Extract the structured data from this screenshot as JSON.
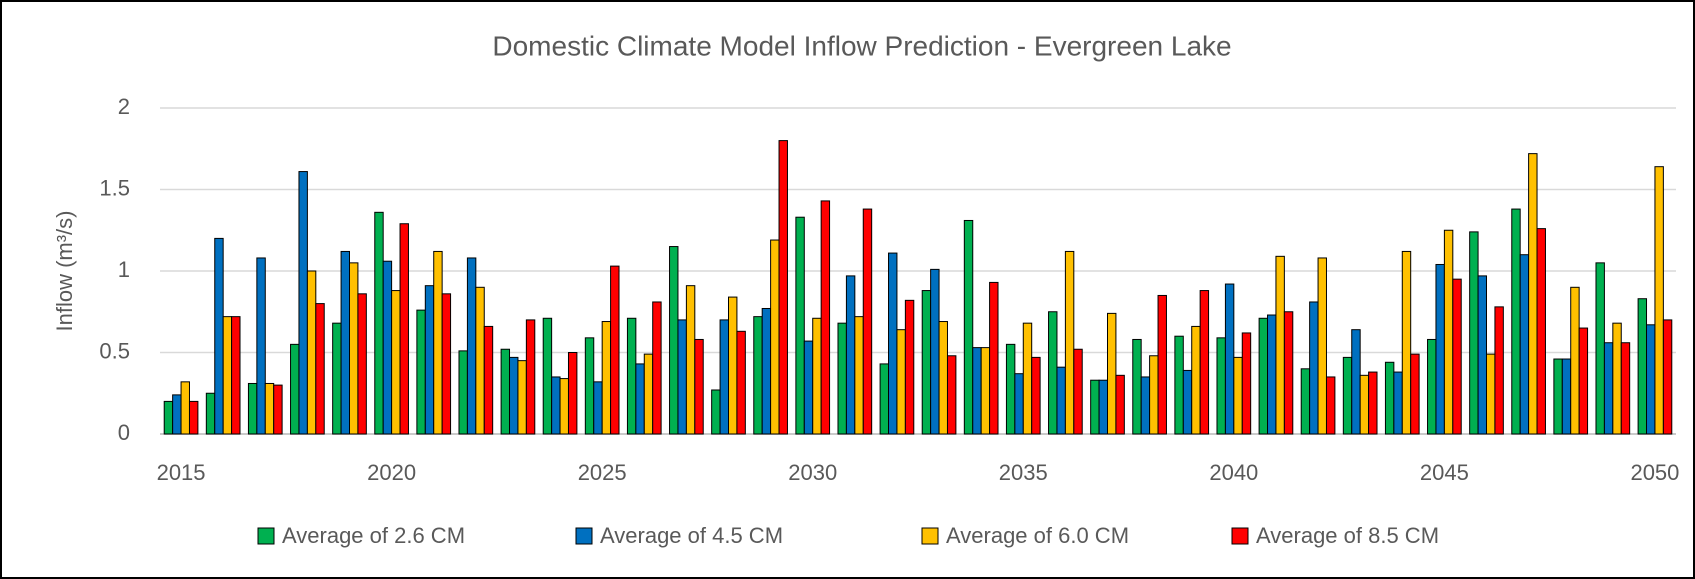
{
  "chart_data": {
    "type": "bar",
    "title": "Domestic Climate Model Inflow Prediction - Evergreen Lake",
    "y_label": "Inflow (m³/s)",
    "categories": [
      "2015",
      null,
      null,
      null,
      null,
      "2020",
      null,
      null,
      null,
      null,
      "2025",
      null,
      null,
      null,
      null,
      "2030",
      null,
      null,
      null,
      null,
      "2035",
      null,
      null,
      null,
      null,
      "2040",
      null,
      null,
      null,
      null,
      "2045",
      null,
      null,
      null,
      null,
      "2050"
    ],
    "series": [
      {
        "name": "Average of 2.6 CM",
        "color": "#00b050",
        "values": [
          0.2,
          0.25,
          0.31,
          0.55,
          0.68,
          1.36,
          0.76,
          0.51,
          0.52,
          0.71,
          0.59,
          0.71,
          1.15,
          0.27,
          0.72,
          1.33,
          0.68,
          0.43,
          0.88,
          1.31,
          0.55,
          0.75,
          0.33,
          0.58,
          0.6,
          0.59,
          0.71,
          0.4,
          0.47,
          0.44,
          0.58,
          1.24,
          1.38,
          0.46,
          1.05,
          0.83
        ]
      },
      {
        "name": "Average of 4.5 CM",
        "color": "#0070c0",
        "values": [
          0.24,
          1.2,
          1.08,
          1.61,
          1.12,
          1.06,
          0.91,
          1.08,
          0.47,
          0.35,
          0.32,
          0.43,
          0.7,
          0.7,
          0.77,
          0.57,
          0.97,
          1.11,
          1.01,
          0.53,
          0.37,
          0.41,
          0.33,
          0.35,
          0.39,
          0.92,
          0.73,
          0.81,
          0.64,
          0.38,
          1.04,
          0.97,
          1.1,
          0.46,
          0.56,
          0.67
        ]
      },
      {
        "name": "Average of 6.0 CM",
        "color": "#ffc000",
        "values": [
          0.32,
          0.72,
          0.31,
          1.0,
          1.05,
          0.88,
          1.12,
          0.9,
          0.45,
          0.34,
          0.69,
          0.49,
          0.91,
          0.84,
          1.19,
          0.71,
          0.72,
          0.64,
          0.69,
          0.53,
          0.68,
          1.12,
          0.74,
          0.48,
          0.66,
          0.47,
          1.09,
          1.08,
          0.36,
          1.12,
          1.25,
          0.49,
          1.72,
          0.9,
          0.68,
          1.64
        ]
      },
      {
        "name": "Average of 8.5 CM",
        "color": "#ff0000",
        "values": [
          0.2,
          0.72,
          0.3,
          0.8,
          0.86,
          1.29,
          0.86,
          0.66,
          0.7,
          0.5,
          1.03,
          0.81,
          0.58,
          0.63,
          1.8,
          1.43,
          1.38,
          0.82,
          0.48,
          0.93,
          0.47,
          0.52,
          0.36,
          0.85,
          0.88,
          0.62,
          0.75,
          0.35,
          0.38,
          0.49,
          0.95,
          0.78,
          1.26,
          0.65,
          0.56,
          0.7
        ]
      }
    ],
    "ylim": [
      0,
      2
    ],
    "yticks": [
      0,
      0.5,
      1,
      1.5,
      2
    ],
    "grid": true
  }
}
